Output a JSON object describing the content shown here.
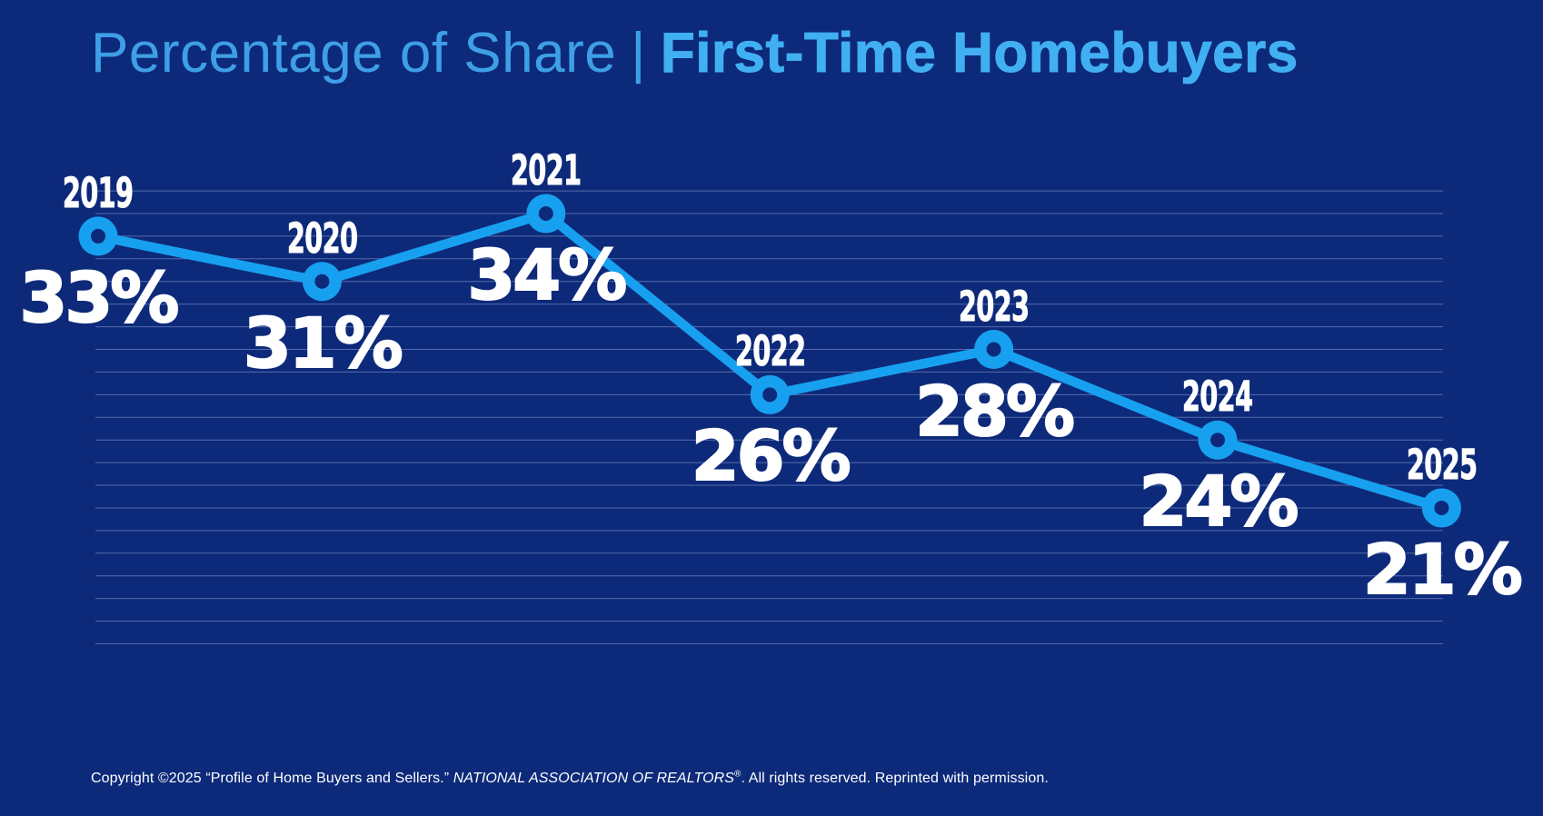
{
  "title": {
    "light": "Percentage of Share",
    "separator": "|",
    "bold": "First-Time Homebuyers"
  },
  "chart_data": {
    "type": "line",
    "title": "Percentage of Share | First-Time Homebuyers",
    "categories": [
      "2019",
      "2020",
      "2021",
      "2022",
      "2023",
      "2024",
      "2025"
    ],
    "values": [
      33,
      31,
      34,
      26,
      28,
      24,
      21
    ],
    "point_labels": [
      "33%",
      "31%",
      "34%",
      "26%",
      "28%",
      "24%",
      "21%"
    ],
    "unit": "%",
    "ylim": [
      15,
      35
    ],
    "gridline_step": 1,
    "grid": "horizontal",
    "legend": "none",
    "xlabel": "",
    "ylabel": ""
  },
  "footer": {
    "prefix": "Copyright ©2025 “Profile of Home Buyers and Sellers.” ",
    "italic": "NATIONAL ASSOCIATION OF REALTORS",
    "registered": "®",
    "suffix": ". All rights reserved. Reprinted with permission."
  },
  "colors": {
    "background": "#0d2a7a",
    "accent_line": "#18a0f0",
    "title_light": "#3e9fe6",
    "title_bold": "#41b0f2",
    "label_text": "#ffffff",
    "gridline": "#8fa3d9"
  }
}
